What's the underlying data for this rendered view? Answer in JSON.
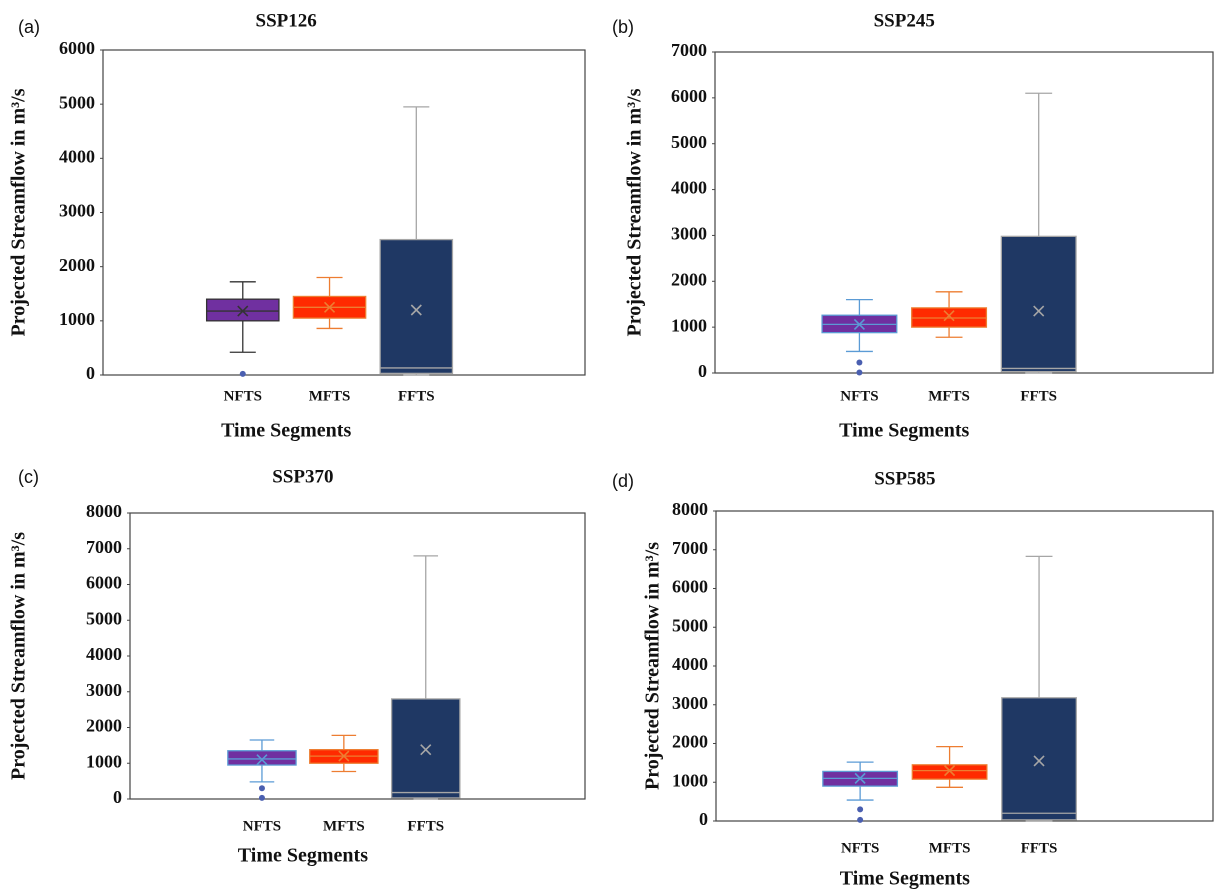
{
  "chart_data": [
    {
      "type": "box",
      "panel": "(a)",
      "title": "SSP126",
      "xlabel": "Time Segments",
      "ylabel": "Projected Streamflow in m³/s",
      "ylim": [
        0,
        6000
      ],
      "yticks": [
        0,
        1000,
        2000,
        3000,
        4000,
        5000,
        6000
      ],
      "categories": [
        "NFTS",
        "MFTS",
        "FFTS"
      ],
      "boxes": [
        {
          "min": 420,
          "q1": 1000,
          "median": 1180,
          "q3": 1400,
          "max": 1720,
          "mean": 1180,
          "outliers": [
            20
          ],
          "color": "#7030a0",
          "whisker_color": "#333333"
        },
        {
          "min": 860,
          "q1": 1050,
          "median": 1250,
          "q3": 1450,
          "max": 1800,
          "mean": 1250,
          "outliers": [],
          "color": "#ff2a00",
          "whisker_color": "#ed7d31"
        },
        {
          "min": 0,
          "q1": 30,
          "median": 130,
          "q3": 2500,
          "max": 4950,
          "mean": 1200,
          "outliers": [],
          "color": "#1f3864",
          "whisker_color": "#a6a6a6"
        }
      ]
    },
    {
      "type": "box",
      "panel": "(b)",
      "title": "SSP245",
      "xlabel": "Time Segments",
      "ylabel": "Projected Streamflow in m³/s",
      "ylim": [
        0,
        7000
      ],
      "yticks": [
        0,
        1000,
        2000,
        3000,
        4000,
        5000,
        6000,
        7000
      ],
      "categories": [
        "NFTS",
        "MFTS",
        "FFTS"
      ],
      "boxes": [
        {
          "min": 470,
          "q1": 880,
          "median": 1060,
          "q3": 1260,
          "max": 1600,
          "mean": 1060,
          "outliers": [
            230,
            10
          ],
          "color": "#7030a0",
          "whisker_color": "#5b9bd5"
        },
        {
          "min": 780,
          "q1": 1000,
          "median": 1200,
          "q3": 1420,
          "max": 1770,
          "mean": 1250,
          "outliers": [],
          "color": "#ff2a00",
          "whisker_color": "#ed7d31"
        },
        {
          "min": 0,
          "q1": 30,
          "median": 100,
          "q3": 2980,
          "max": 6100,
          "mean": 1350,
          "outliers": [],
          "color": "#1f3864",
          "whisker_color": "#a6a6a6"
        }
      ]
    },
    {
      "type": "box",
      "panel": "(c)",
      "title": "SSP370",
      "xlabel": "Time Segments",
      "ylabel": "Projected Streamflow in m³/s",
      "ylim": [
        0,
        8000
      ],
      "yticks": [
        0,
        1000,
        2000,
        3000,
        4000,
        5000,
        6000,
        7000,
        8000
      ],
      "categories": [
        "NFTS",
        "MFTS",
        "FFTS"
      ],
      "boxes": [
        {
          "min": 480,
          "q1": 950,
          "median": 1120,
          "q3": 1350,
          "max": 1650,
          "mean": 1100,
          "outliers": [
            300,
            30
          ],
          "color": "#7030a0",
          "whisker_color": "#5b9bd5"
        },
        {
          "min": 770,
          "q1": 1000,
          "median": 1200,
          "q3": 1380,
          "max": 1780,
          "mean": 1200,
          "outliers": [],
          "color": "#ff2a00",
          "whisker_color": "#ed7d31"
        },
        {
          "min": 0,
          "q1": 30,
          "median": 180,
          "q3": 2800,
          "max": 6800,
          "mean": 1380,
          "outliers": [],
          "color": "#1f3864",
          "whisker_color": "#a6a6a6"
        }
      ]
    },
    {
      "type": "box",
      "panel": "(d)",
      "title": "SSP585",
      "xlabel": "Time Segments",
      "ylabel": "Projected Streamflow in m³/s",
      "ylim": [
        0,
        8000
      ],
      "yticks": [
        0,
        1000,
        2000,
        3000,
        4000,
        5000,
        6000,
        7000,
        8000
      ],
      "categories": [
        "NFTS",
        "MFTS",
        "FFTS"
      ],
      "boxes": [
        {
          "min": 540,
          "q1": 900,
          "median": 1100,
          "q3": 1280,
          "max": 1520,
          "mean": 1100,
          "outliers": [
            300,
            30
          ],
          "color": "#7030a0",
          "whisker_color": "#5b9bd5"
        },
        {
          "min": 870,
          "q1": 1080,
          "median": 1300,
          "q3": 1450,
          "max": 1920,
          "mean": 1300,
          "outliers": [],
          "color": "#ff2a00",
          "whisker_color": "#ed7d31"
        },
        {
          "min": 0,
          "q1": 30,
          "median": 200,
          "q3": 3180,
          "max": 6830,
          "mean": 1550,
          "outliers": [],
          "color": "#1f3864",
          "whisker_color": "#a6a6a6"
        }
      ]
    }
  ]
}
